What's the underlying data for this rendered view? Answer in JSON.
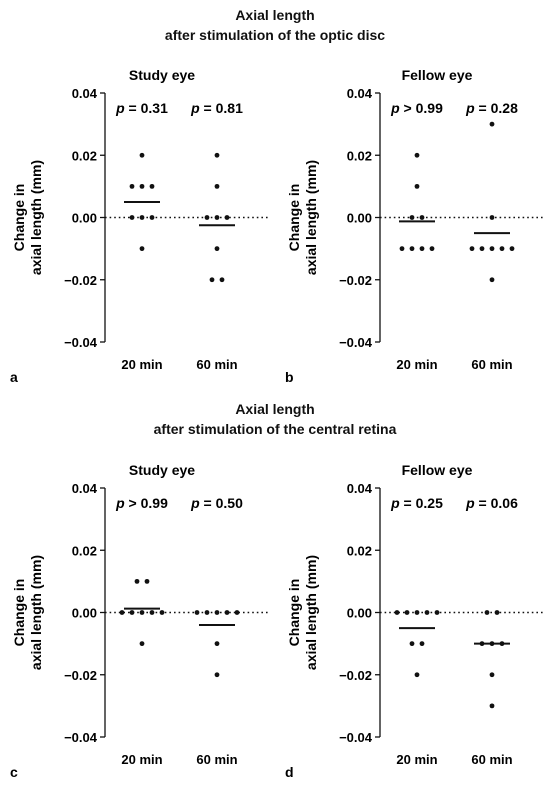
{
  "sections": [
    {
      "title_line1": "Axial length",
      "title_line2": "after stimulation of the optic disc"
    },
    {
      "title_line1": "Axial length",
      "title_line2": "after stimulation of the central retina"
    }
  ],
  "chart_data": [
    {
      "type": "scatter",
      "panel": "a",
      "title": "Study eye",
      "ylabel_line1": "Change in",
      "ylabel_line2": "axial length (mm)",
      "ylim": [
        -0.04,
        0.04
      ],
      "yticks": [
        "0.04",
        "0.02",
        "0.00",
        "-0.02",
        "-0.04"
      ],
      "categories": [
        "20 min",
        "60 min"
      ],
      "p_values": [
        "p = 0.31",
        "p = 0.81"
      ],
      "reference_line": 0,
      "points": [
        [
          0.02,
          0.01,
          0.01,
          0.01,
          0,
          0,
          0,
          -0.01
        ],
        [
          0.02,
          0.01,
          0,
          0,
          0,
          -0.01,
          -0.02,
          -0.02
        ]
      ],
      "means": [
        0.005,
        -0.0025
      ]
    },
    {
      "type": "scatter",
      "panel": "b",
      "title": "Fellow eye",
      "ylabel_line1": "Change in",
      "ylabel_line2": "axial length (mm)",
      "ylim": [
        -0.04,
        0.04
      ],
      "yticks": [
        "0.04",
        "0.02",
        "0.00",
        "-0.02",
        "-0.04"
      ],
      "categories": [
        "20 min",
        "60 min"
      ],
      "p_values": [
        "p > 0.99",
        "p = 0.28"
      ],
      "reference_line": 0,
      "points": [
        [
          0.02,
          0.01,
          0,
          0,
          -0.01,
          -0.01,
          -0.01,
          -0.01
        ],
        [
          0.03,
          0,
          -0.01,
          -0.01,
          -0.01,
          -0.01,
          -0.01,
          -0.02
        ]
      ],
      "means": [
        -0.00125,
        -0.005
      ]
    },
    {
      "type": "scatter",
      "panel": "c",
      "title": "Study eye",
      "ylabel_line1": "Change in",
      "ylabel_line2": "axial length (mm)",
      "ylim": [
        -0.04,
        0.04
      ],
      "yticks": [
        "0.04",
        "0.02",
        "0.00",
        "-0.02",
        "-0.04"
      ],
      "categories": [
        "20 min",
        "60 min"
      ],
      "p_values": [
        "p > 0.99",
        "p = 0.50"
      ],
      "reference_line": 0,
      "points": [
        [
          0.01,
          0.01,
          0,
          0,
          0,
          0,
          0,
          -0.01
        ],
        [
          0,
          0,
          0,
          0,
          0,
          -0.01,
          -0.02
        ]
      ],
      "means": [
        0.00125,
        -0.004
      ]
    },
    {
      "type": "scatter",
      "panel": "d",
      "title": "Fellow eye",
      "ylabel_line1": "Change in",
      "ylabel_line2": "axial length (mm)",
      "ylim": [
        -0.04,
        0.04
      ],
      "yticks": [
        "0.04",
        "0.02",
        "0.00",
        "-0.02",
        "-0.04"
      ],
      "categories": [
        "20 min",
        "60 min"
      ],
      "p_values": [
        "p = 0.25",
        "p = 0.06"
      ],
      "reference_line": 0,
      "points": [
        [
          0,
          0,
          0,
          0,
          0,
          -0.01,
          -0.01,
          -0.02
        ],
        [
          0,
          0,
          -0.01,
          -0.01,
          -0.01,
          -0.02,
          -0.03
        ]
      ],
      "means": [
        -0.005,
        -0.01
      ]
    }
  ]
}
